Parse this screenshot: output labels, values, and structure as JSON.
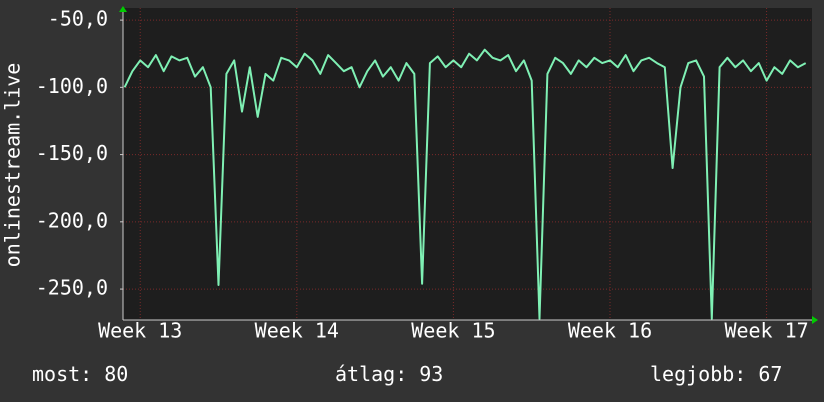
{
  "chart_data": {
    "type": "line",
    "y_label": "onlinestream.live",
    "color": "#7ff0b4",
    "grid": true,
    "x": [
      12.9,
      12.95,
      13.0,
      13.05,
      13.1,
      13.15,
      13.2,
      13.25,
      13.3,
      13.35,
      13.4,
      13.45,
      13.5,
      13.55,
      13.6,
      13.65,
      13.7,
      13.75,
      13.8,
      13.85,
      13.9,
      13.95,
      14.0,
      14.05,
      14.1,
      14.15,
      14.2,
      14.25,
      14.3,
      14.35,
      14.4,
      14.45,
      14.5,
      14.55,
      14.6,
      14.65,
      14.7,
      14.75,
      14.8,
      14.85,
      14.9,
      14.95,
      15.0,
      15.05,
      15.1,
      15.15,
      15.2,
      15.25,
      15.3,
      15.35,
      15.4,
      15.45,
      15.5,
      15.55,
      15.6,
      15.65,
      15.7,
      15.75,
      15.8,
      15.85,
      15.9,
      15.95,
      16.0,
      16.05,
      16.1,
      16.15,
      16.2,
      16.25,
      16.3,
      16.35,
      16.4,
      16.45,
      16.5,
      16.55,
      16.6,
      16.65,
      16.7,
      16.75,
      16.8,
      16.85,
      16.9,
      16.95,
      17.0,
      17.05,
      17.1,
      17.15,
      17.2,
      17.25
    ],
    "values": [
      -100,
      -88,
      -80,
      -85,
      -76,
      -88,
      -77,
      -80,
      -78,
      -92,
      -85,
      -100,
      -247,
      -90,
      -80,
      -118,
      -85,
      -122,
      -90,
      -95,
      -78,
      -80,
      -85,
      -75,
      -80,
      -90,
      -76,
      -82,
      -88,
      -85,
      -100,
      -88,
      -80,
      -92,
      -85,
      -95,
      -82,
      -90,
      -246,
      -82,
      -77,
      -85,
      -80,
      -85,
      -75,
      -80,
      -72,
      -78,
      -80,
      -76,
      -88,
      -80,
      -95,
      -272,
      -90,
      -78,
      -82,
      -90,
      -80,
      -85,
      -78,
      -82,
      -80,
      -85,
      -76,
      -88,
      -80,
      -78,
      -82,
      -85,
      -160,
      -100,
      -82,
      -80,
      -92,
      -272,
      -85,
      -78,
      -85,
      -80,
      -88,
      -82,
      -95,
      -85,
      -90,
      -80,
      -85,
      -82
    ],
    "xlim": [
      12.89,
      17.29
    ],
    "xticks": [
      {
        "value": 13,
        "label": "Week 13"
      },
      {
        "value": 14,
        "label": "Week 14"
      },
      {
        "value": 15,
        "label": "Week 15"
      },
      {
        "value": 16,
        "label": "Week 16"
      },
      {
        "value": 17,
        "label": "Week 17"
      }
    ],
    "ylim": [
      -273,
      -41
    ],
    "yticks": [
      {
        "value": -50,
        "label": "-50,0"
      },
      {
        "value": -100,
        "label": "-100,0"
      },
      {
        "value": -150,
        "label": "-150,0"
      },
      {
        "value": -200,
        "label": "-200,0"
      },
      {
        "value": -250,
        "label": "-250,0"
      }
    ],
    "stats": [
      {
        "label": "most:",
        "value": 80
      },
      {
        "label": "átlag:",
        "value": 93
      },
      {
        "label": "legjobb:",
        "value": 67
      }
    ]
  }
}
